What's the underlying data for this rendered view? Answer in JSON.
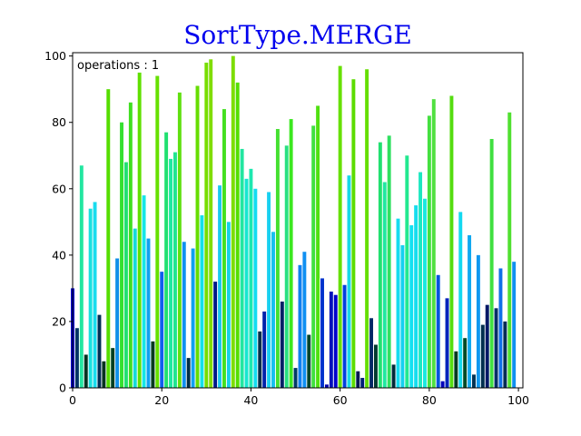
{
  "chart_data": {
    "type": "bar",
    "title": "SortType.MERGE",
    "title_color": "#0000ee",
    "annotation": "operations : 1",
    "xlabel": "",
    "ylabel": "",
    "xlim": [
      0,
      101
    ],
    "ylim": [
      0,
      101
    ],
    "xticks": [
      0,
      20,
      40,
      60,
      80,
      100
    ],
    "yticks": [
      0,
      20,
      40,
      60,
      80,
      100
    ],
    "grid": false,
    "x": [
      0,
      1,
      2,
      3,
      4,
      5,
      6,
      7,
      8,
      9,
      10,
      11,
      12,
      13,
      14,
      15,
      16,
      17,
      18,
      19,
      20,
      21,
      22,
      23,
      24,
      25,
      26,
      27,
      28,
      29,
      30,
      31,
      32,
      33,
      34,
      35,
      36,
      37,
      38,
      39,
      40,
      41,
      42,
      43,
      44,
      45,
      46,
      47,
      48,
      49,
      50,
      51,
      52,
      53,
      54,
      55,
      56,
      57,
      58,
      59,
      60,
      61,
      62,
      63,
      64,
      65,
      66,
      67,
      68,
      69,
      70,
      71,
      72,
      73,
      74,
      75,
      76,
      77,
      78,
      79,
      80,
      81,
      82,
      83,
      84,
      85,
      86,
      87,
      88,
      89,
      90,
      91,
      92,
      93,
      94,
      95,
      96,
      97,
      98,
      99
    ],
    "values": [
      30,
      18,
      67,
      10,
      54,
      56,
      22,
      8,
      90,
      12,
      39,
      80,
      68,
      86,
      48,
      95,
      58,
      45,
      14,
      94,
      35,
      77,
      69,
      71,
      89,
      44,
      9,
      42,
      91,
      52,
      98,
      99,
      32,
      61,
      84,
      50,
      100,
      92,
      72,
      63,
      66,
      60,
      17,
      23,
      59,
      47,
      78,
      26,
      73,
      81,
      6,
      37,
      41,
      16,
      79,
      85,
      33,
      1,
      29,
      28,
      97,
      31,
      64,
      93,
      5,
      3,
      96,
      21,
      13,
      74,
      62,
      76,
      7,
      51,
      43,
      70,
      49,
      55,
      65,
      57,
      82,
      87,
      34,
      2,
      27,
      88,
      11,
      53,
      15,
      46,
      4,
      40,
      19,
      25,
      75,
      24,
      36,
      20,
      83,
      38
    ],
    "colors": [
      "#0000cc",
      "#003366",
      "#22e6a0",
      "#003322",
      "#19e0e0",
      "#19dcee",
      "#002e55",
      "#003320",
      "#55dd00",
      "#004020",
      "#1090e8",
      "#35e030",
      "#22e070",
      "#40df20",
      "#15dada",
      "#60e000",
      "#15e6e6",
      "#10a0f0",
      "#003b1f",
      "#66e000",
      "#1060ee",
      "#20e070",
      "#20e8a0",
      "#20e590",
      "#60e010",
      "#1090f0",
      "#002d44",
      "#10a0f2",
      "#66dd00",
      "#15e0e8",
      "#77dd00",
      "#80dd00",
      "#001a88",
      "#18c8f0",
      "#44e020",
      "#14d0e8",
      "#7ddd00",
      "#55de00",
      "#22e6a0",
      "#17e6d0",
      "#1de8b0",
      "#14dcf0",
      "#002e4a",
      "#0022aa",
      "#18d0f0",
      "#16c0f0",
      "#44e030",
      "#002266",
      "#28e080",
      "#3ce820",
      "#003c66",
      "#1080f0",
      "#1090f2",
      "#00452a",
      "#40e040",
      "#50e010",
      "#0033cc",
      "#0000aa",
      "#0011bb",
      "#0000cc",
      "#66e000",
      "#0040dd",
      "#17d8e8",
      "#5cdc00",
      "#001855",
      "#001f77",
      "#66de00",
      "#002a66",
      "#003a30",
      "#22e070",
      "#20e8a0",
      "#30e060",
      "#002a3a",
      "#14dcf0",
      "#15d0f0",
      "#22e890",
      "#14e0f0",
      "#16ddee",
      "#1de8c0",
      "#1ae8e0",
      "#44e040",
      "#50e040",
      "#0055dd",
      "#0000bb",
      "#0022bb",
      "#55dd10",
      "#003a20",
      "#14d8f0",
      "#004a28",
      "#10a8f0",
      "#003355",
      "#1098f0",
      "#002f4f",
      "#001866",
      "#40e040",
      "#002e66",
      "#1070e8",
      "#002c55",
      "#50e030",
      "#1090f0"
    ]
  }
}
